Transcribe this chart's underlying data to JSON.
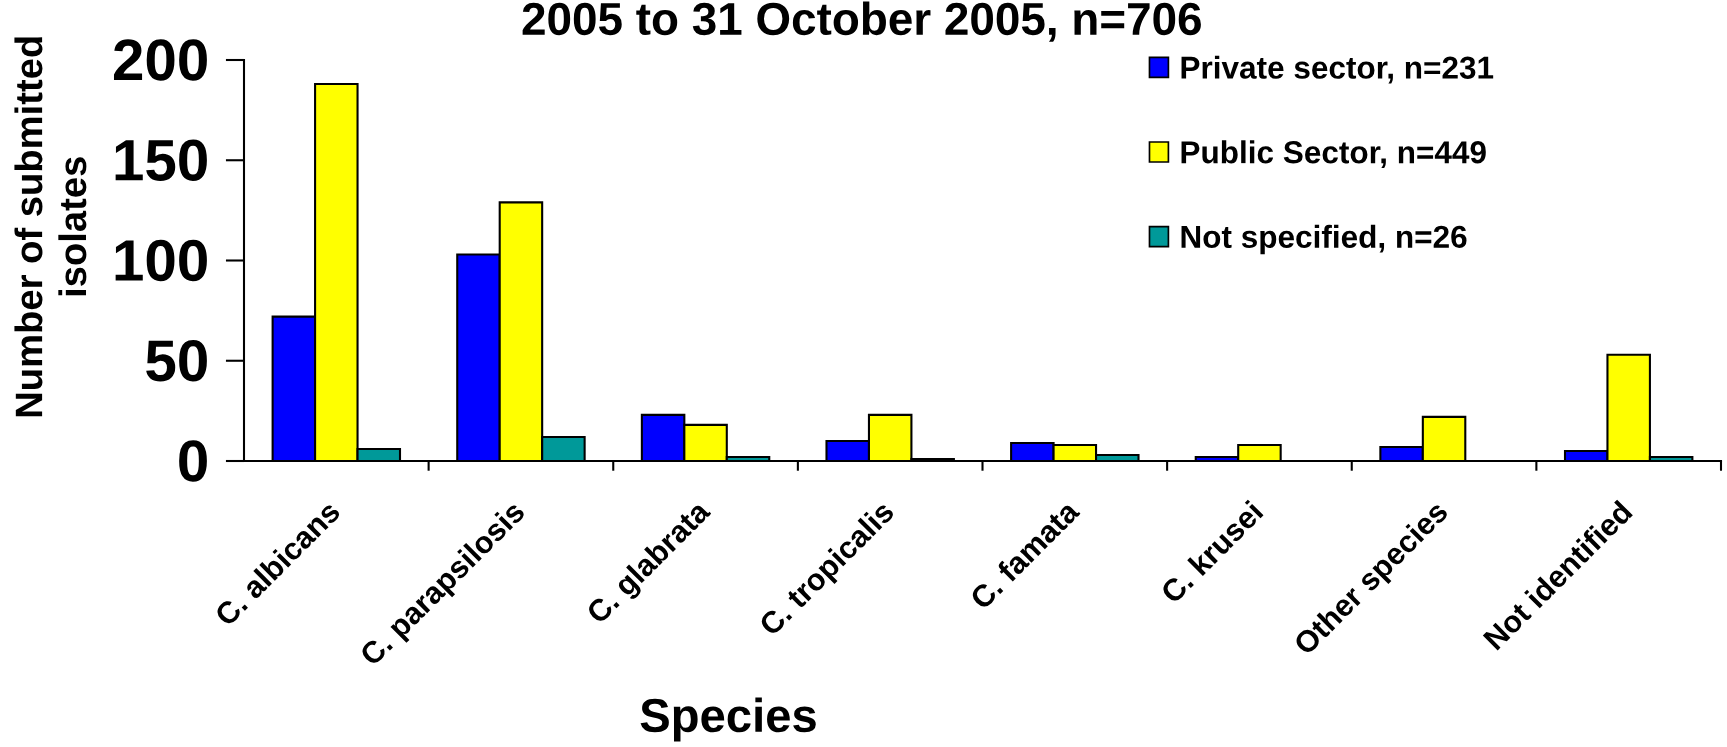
{
  "chart_data": {
    "type": "bar",
    "title": "2005 to 31 October 2005, n=706",
    "xlabel": "Species",
    "ylabel": "Number of submitted\nisolates",
    "categories": [
      "C. albicans",
      "C. parapsilosis",
      "C. glabrata",
      "C. tropicalis",
      "C. famata",
      "C. krusei",
      "Other species",
      "Not identified"
    ],
    "series": [
      {
        "name": "Private sector, n=231",
        "color": "#0000ff",
        "values": [
          72,
          103,
          23,
          10,
          9,
          2,
          7,
          5
        ]
      },
      {
        "name": "Public Sector, n=449",
        "color": "#ffff00",
        "values": [
          188,
          129,
          18,
          23,
          8,
          8,
          22,
          53
        ]
      },
      {
        "name": "Not specified, n=26",
        "color": "#009999",
        "values": [
          6,
          12,
          2,
          1,
          3,
          null,
          null,
          2
        ]
      }
    ],
    "ylim": [
      0,
      200
    ],
    "yticks": [
      0,
      50,
      100,
      150,
      200
    ],
    "legend": "top right"
  }
}
